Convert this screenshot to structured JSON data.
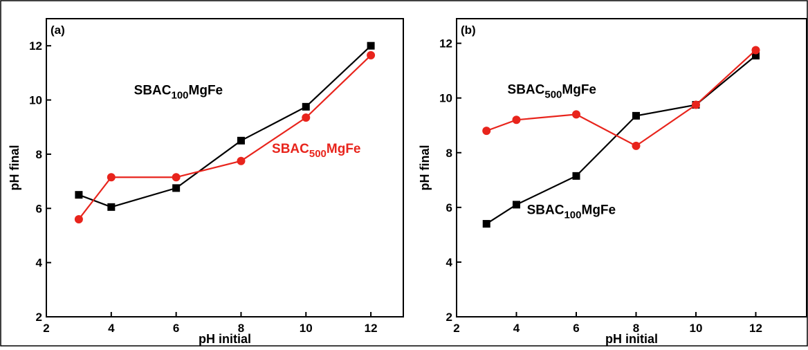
{
  "chart_data": [
    {
      "type": "line",
      "panel_label": "(a)",
      "xlabel": "pH initial",
      "ylabel": "pH final",
      "xlim": [
        2,
        13
      ],
      "ylim": [
        2,
        13
      ],
      "xticks": [
        2,
        4,
        6,
        8,
        10,
        12
      ],
      "yticks": [
        2,
        4,
        6,
        8,
        10,
        12
      ],
      "grid": false,
      "series": [
        {
          "name": "SBAC100MgFe",
          "color": "#000000",
          "marker": "square",
          "x": [
            3,
            4,
            6,
            8,
            10,
            12
          ],
          "y": [
            6.5,
            6.05,
            6.75,
            8.5,
            9.75,
            12.0
          ]
        },
        {
          "name": "SBAC500MgFe",
          "color": "#e8241c",
          "marker": "circle",
          "x": [
            3,
            4,
            6,
            8,
            10,
            12
          ],
          "y": [
            5.6,
            7.15,
            7.15,
            7.75,
            9.35,
            11.65
          ]
        }
      ],
      "annotations": [
        {
          "series": 0,
          "base": "SBAC",
          "sub": "100",
          "rest": "MgFe",
          "color": "#000000",
          "x": 4.7,
          "y": 10.2
        },
        {
          "series": 1,
          "base": "SBAC",
          "sub": "500",
          "rest": "MgFe",
          "color": "#e8241c",
          "x": 8.95,
          "y": 8.05
        }
      ]
    },
    {
      "type": "line",
      "panel_label": "(b)",
      "xlabel": "pH initial",
      "ylabel": "pH final",
      "xlim": [
        2,
        13.7
      ],
      "ylim": [
        2,
        12.9
      ],
      "xticks": [
        2,
        4,
        6,
        8,
        10,
        12
      ],
      "yticks": [
        2,
        4,
        6,
        8,
        10,
        12
      ],
      "grid": false,
      "series": [
        {
          "name": "SBAC100MgFe",
          "color": "#000000",
          "marker": "square",
          "x": [
            3,
            4,
            6,
            8,
            10,
            12
          ],
          "y": [
            5.4,
            6.1,
            7.15,
            9.35,
            9.75,
            11.55
          ]
        },
        {
          "name": "SBAC500MgFe",
          "color": "#e8241c",
          "marker": "circle",
          "x": [
            3,
            4,
            6,
            8,
            10,
            12
          ],
          "y": [
            8.8,
            9.2,
            9.4,
            8.25,
            9.75,
            11.75
          ]
        }
      ],
      "annotations": [
        {
          "series": 0,
          "base": "SBAC",
          "sub": "100",
          "rest": "MgFe",
          "color": "#000000",
          "x": 4.35,
          "y": 5.75
        },
        {
          "series": 1,
          "base": "SBAC",
          "sub": "500",
          "rest": "MgFe",
          "color": "#000000",
          "x": 3.7,
          "y": 10.15
        }
      ]
    }
  ]
}
